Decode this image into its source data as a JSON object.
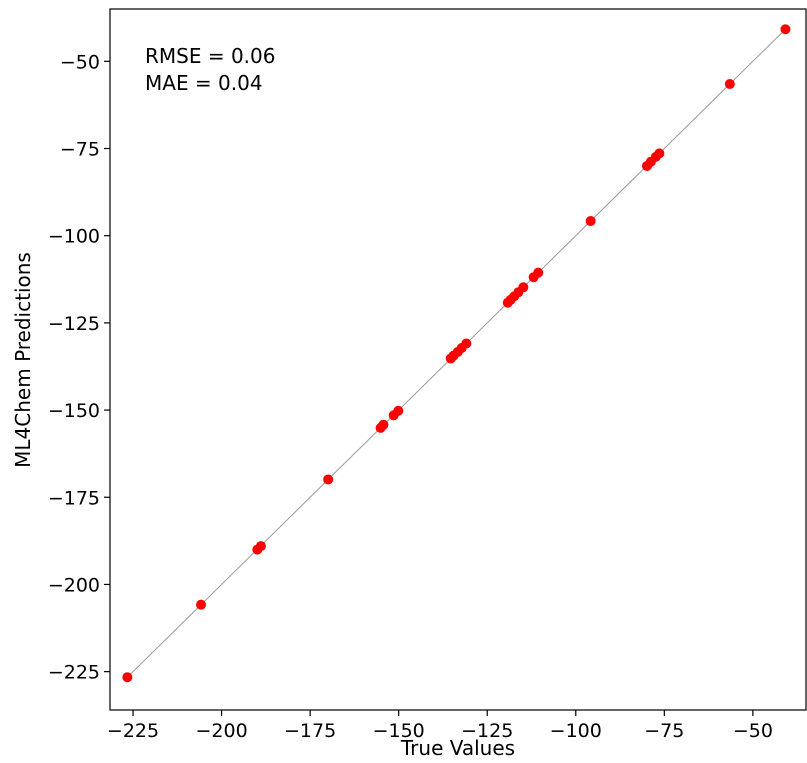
{
  "chart_data": {
    "type": "scatter",
    "title": "",
    "xlabel": "True Values",
    "ylabel": "ML4Chem Predictions",
    "xlim": [
      -231.5,
      -35
    ],
    "ylim": [
      -236,
      -35
    ],
    "x_ticks": [
      -225,
      -200,
      -175,
      -150,
      -125,
      -100,
      -75,
      -50
    ],
    "y_ticks": [
      -225,
      -200,
      -175,
      -150,
      -125,
      -100,
      -75,
      -50
    ],
    "x_tick_labels": [
      "−225",
      "−200",
      "−175",
      "−150",
      "−125",
      "−100",
      "−75",
      "−50"
    ],
    "y_tick_labels": [
      "−225",
      "−200",
      "−175",
      "−150",
      "−125",
      "−100",
      "−75",
      "−50"
    ],
    "grid": false,
    "annotations": [
      "RMSE = 0.06",
      "MAE = 0.04"
    ],
    "identity_line": {
      "x": [
        -226.7,
        -40.8
      ],
      "y": [
        -226.7,
        -40.8
      ],
      "color": "#999999"
    },
    "series": [
      {
        "color": "#ff0000",
        "points": [
          [
            -226.6,
            -226.6
          ],
          [
            -205.8,
            -205.8
          ],
          [
            -189.9,
            -190.0
          ],
          [
            -188.9,
            -189.0
          ],
          [
            -169.9,
            -169.9
          ],
          [
            -155.1,
            -155.1
          ],
          [
            -154.3,
            -154.2
          ],
          [
            -151.4,
            -151.5
          ],
          [
            -150.1,
            -150.2
          ],
          [
            -135.3,
            -135.2
          ],
          [
            -134.5,
            -134.4
          ],
          [
            -133.3,
            -133.3
          ],
          [
            -132.2,
            -132.2
          ],
          [
            -130.9,
            -130.9
          ],
          [
            -119.2,
            -119.2
          ],
          [
            -118.4,
            -118.4
          ],
          [
            -117.4,
            -117.4
          ],
          [
            -116.2,
            -116.2
          ],
          [
            -114.8,
            -114.8
          ],
          [
            -111.9,
            -111.9
          ],
          [
            -110.6,
            -110.6
          ],
          [
            -95.8,
            -95.8
          ],
          [
            -79.9,
            -80.0
          ],
          [
            -78.8,
            -78.8
          ],
          [
            -77.4,
            -77.4
          ],
          [
            -76.4,
            -76.4
          ],
          [
            -56.5,
            -56.5
          ],
          [
            -40.8,
            -40.8
          ]
        ]
      }
    ]
  }
}
